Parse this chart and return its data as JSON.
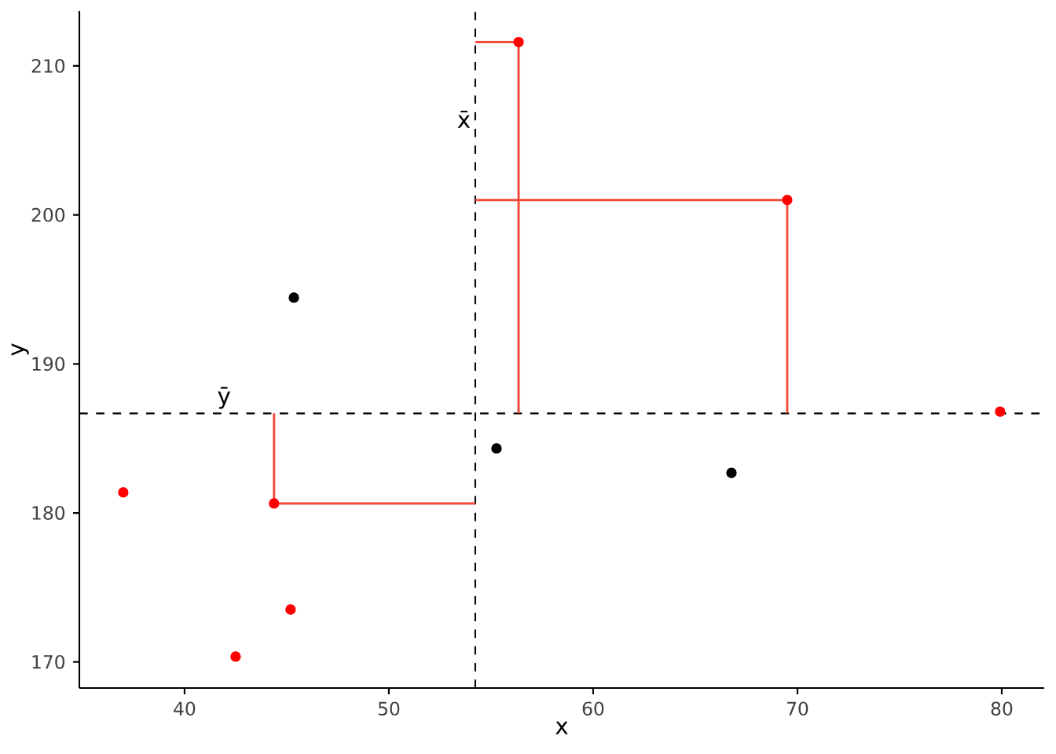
{
  "chart_data": {
    "type": "scatter",
    "xlabel": "x",
    "ylabel": "y",
    "xlim": [
      34.85,
      82.08
    ],
    "ylim": [
      168.25,
      213.69
    ],
    "xticks": [
      40,
      50,
      60,
      70,
      80
    ],
    "yticks": [
      170,
      180,
      190,
      200,
      210
    ],
    "grid": false,
    "series": [
      {
        "type": "line",
        "marker": "none",
        "color": "#f24a3a",
        "x": [
          54.23,
          56.35,
          56.35
        ],
        "values": [
          211.6,
          211.6,
          186.68
        ]
      },
      {
        "type": "line",
        "marker": "none",
        "color": "#f24a3a",
        "x": [
          54.23,
          69.5,
          69.5
        ],
        "values": [
          201.0,
          201.0,
          186.68
        ]
      },
      {
        "type": "line",
        "marker": "none",
        "color": "#f24a3a",
        "x": [
          54.23,
          44.38,
          44.38
        ],
        "values": [
          180.64,
          180.64,
          186.68
        ]
      },
      {
        "marker": "circle",
        "color": "#ff0000",
        "x": [
          56.35,
          69.5,
          79.92,
          37.0,
          44.38,
          45.19,
          42.5
        ],
        "values": [
          211.6,
          201.0,
          186.8,
          181.38,
          180.64,
          173.52,
          170.36
        ]
      },
      {
        "marker": "circle",
        "color": "#000000",
        "x": [
          45.35,
          55.27,
          66.77
        ],
        "values": [
          194.45,
          184.33,
          182.69
        ]
      }
    ],
    "ref_lines": [
      {
        "axis": "x",
        "value": 54.23,
        "color": "#000000",
        "line_style": "dashed",
        "label": "x̄"
      },
      {
        "axis": "y",
        "value": 186.68,
        "color": "#000000",
        "line_style": "dashed",
        "label": "ȳ"
      }
    ]
  }
}
